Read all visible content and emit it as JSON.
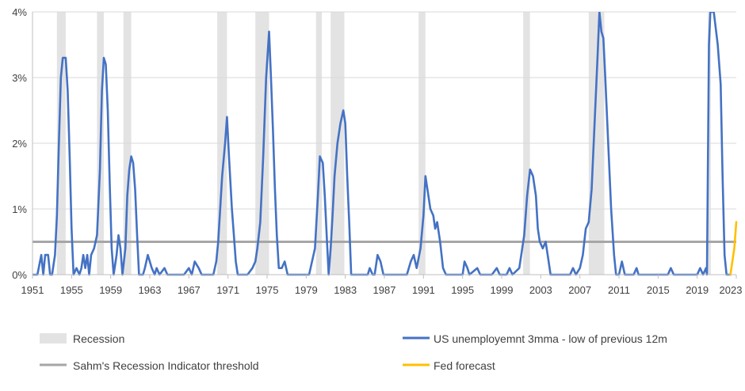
{
  "chart_data": {
    "type": "line",
    "title": "",
    "xlabel": "",
    "ylabel": "",
    "xlim": [
      1951,
      2023
    ],
    "ylim": [
      0,
      4
    ],
    "y_ticks": [
      0,
      1,
      2,
      3,
      4
    ],
    "y_tick_labels": [
      "0%",
      "1%",
      "2%",
      "3%",
      "4%"
    ],
    "x_ticks": [
      1951,
      1955,
      1959,
      1963,
      1967,
      1971,
      1975,
      1979,
      1983,
      1987,
      1991,
      1995,
      1999,
      2003,
      2007,
      2011,
      2015,
      2019,
      2023
    ],
    "x_tick_labels": [
      "1951",
      "1955",
      "1959",
      "1963",
      "1967",
      "1971",
      "1975",
      "1979",
      "1983",
      "1987",
      "1991",
      "1995",
      "1999",
      "2003",
      "2007",
      "2011",
      "2015",
      "2019",
      "2023"
    ],
    "grid": "horizontal",
    "legend_position": "bottom",
    "recessions": [
      [
        1953.5,
        1954.4
      ],
      [
        1957.6,
        1958.3
      ],
      [
        1960.3,
        1961.1
      ],
      [
        1969.9,
        1970.9
      ],
      [
        1973.8,
        1975.2
      ],
      [
        1980.0,
        1980.6
      ],
      [
        1981.5,
        1982.9
      ],
      [
        1990.5,
        1991.2
      ],
      [
        2001.2,
        2001.9
      ],
      [
        2007.9,
        2009.5
      ],
      [
        2020.1,
        2020.4
      ]
    ],
    "threshold": 0.5,
    "series": [
      {
        "name": "US unemployemnt 3mma - low of previous 12m",
        "color": "#4472c4",
        "points": [
          [
            1951.0,
            0.0
          ],
          [
            1951.5,
            0.0
          ],
          [
            1951.9,
            0.3
          ],
          [
            1952.1,
            0.0
          ],
          [
            1952.3,
            0.3
          ],
          [
            1952.6,
            0.3
          ],
          [
            1952.8,
            0.0
          ],
          [
            1953.0,
            0.0
          ],
          [
            1953.3,
            0.3
          ],
          [
            1953.5,
            0.9
          ],
          [
            1953.7,
            2.0
          ],
          [
            1953.9,
            3.0
          ],
          [
            1954.1,
            3.3
          ],
          [
            1954.4,
            3.3
          ],
          [
            1954.6,
            2.8
          ],
          [
            1954.8,
            1.8
          ],
          [
            1955.0,
            0.7
          ],
          [
            1955.2,
            0.0
          ],
          [
            1955.5,
            0.1
          ],
          [
            1955.8,
            0.0
          ],
          [
            1956.0,
            0.1
          ],
          [
            1956.2,
            0.3
          ],
          [
            1956.4,
            0.1
          ],
          [
            1956.6,
            0.3
          ],
          [
            1956.8,
            0.0
          ],
          [
            1957.0,
            0.3
          ],
          [
            1957.3,
            0.4
          ],
          [
            1957.6,
            0.6
          ],
          [
            1957.9,
            1.6
          ],
          [
            1958.1,
            2.8
          ],
          [
            1958.3,
            3.3
          ],
          [
            1958.5,
            3.2
          ],
          [
            1958.7,
            2.5
          ],
          [
            1958.9,
            1.4
          ],
          [
            1959.1,
            0.4
          ],
          [
            1959.3,
            0.0
          ],
          [
            1959.6,
            0.3
          ],
          [
            1959.8,
            0.6
          ],
          [
            1960.0,
            0.4
          ],
          [
            1960.2,
            0.0
          ],
          [
            1960.5,
            0.4
          ],
          [
            1960.7,
            1.2
          ],
          [
            1960.9,
            1.6
          ],
          [
            1961.1,
            1.8
          ],
          [
            1961.3,
            1.7
          ],
          [
            1961.5,
            1.3
          ],
          [
            1961.7,
            0.6
          ],
          [
            1961.9,
            0.0
          ],
          [
            1962.3,
            0.0
          ],
          [
            1962.5,
            0.1
          ],
          [
            1962.8,
            0.3
          ],
          [
            1963.0,
            0.2
          ],
          [
            1963.2,
            0.1
          ],
          [
            1963.5,
            0.0
          ],
          [
            1963.7,
            0.1
          ],
          [
            1964.0,
            0.0
          ],
          [
            1964.5,
            0.1
          ],
          [
            1964.8,
            0.0
          ],
          [
            1966.5,
            0.0
          ],
          [
            1967.0,
            0.1
          ],
          [
            1967.3,
            0.0
          ],
          [
            1967.6,
            0.2
          ],
          [
            1968.0,
            0.1
          ],
          [
            1968.3,
            0.0
          ],
          [
            1969.5,
            0.0
          ],
          [
            1969.8,
            0.2
          ],
          [
            1970.0,
            0.5
          ],
          [
            1970.2,
            1.0
          ],
          [
            1970.4,
            1.5
          ],
          [
            1970.7,
            2.0
          ],
          [
            1970.9,
            2.4
          ],
          [
            1971.1,
            1.8
          ],
          [
            1971.4,
            1.0
          ],
          [
            1971.6,
            0.6
          ],
          [
            1971.8,
            0.2
          ],
          [
            1972.0,
            0.0
          ],
          [
            1973.0,
            0.0
          ],
          [
            1973.5,
            0.1
          ],
          [
            1973.8,
            0.2
          ],
          [
            1974.0,
            0.4
          ],
          [
            1974.3,
            0.8
          ],
          [
            1974.6,
            1.8
          ],
          [
            1974.9,
            3.0
          ],
          [
            1975.2,
            3.7
          ],
          [
            1975.4,
            3.0
          ],
          [
            1975.6,
            2.2
          ],
          [
            1975.8,
            1.3
          ],
          [
            1976.0,
            0.6
          ],
          [
            1976.2,
            0.1
          ],
          [
            1976.5,
            0.1
          ],
          [
            1976.8,
            0.2
          ],
          [
            1977.1,
            0.0
          ],
          [
            1979.3,
            0.0
          ],
          [
            1979.6,
            0.2
          ],
          [
            1979.9,
            0.4
          ],
          [
            1980.2,
            1.2
          ],
          [
            1980.4,
            1.8
          ],
          [
            1980.7,
            1.7
          ],
          [
            1980.9,
            1.2
          ],
          [
            1981.1,
            0.6
          ],
          [
            1981.3,
            0.0
          ],
          [
            1981.5,
            0.4
          ],
          [
            1981.7,
            0.9
          ],
          [
            1981.9,
            1.5
          ],
          [
            1982.2,
            2.0
          ],
          [
            1982.5,
            2.3
          ],
          [
            1982.8,
            2.5
          ],
          [
            1983.0,
            2.3
          ],
          [
            1983.2,
            1.5
          ],
          [
            1983.4,
            0.8
          ],
          [
            1983.6,
            0.0
          ],
          [
            1985.3,
            0.0
          ],
          [
            1985.5,
            0.1
          ],
          [
            1985.8,
            0.0
          ],
          [
            1986.0,
            0.0
          ],
          [
            1986.3,
            0.3
          ],
          [
            1986.6,
            0.2
          ],
          [
            1986.9,
            0.0
          ],
          [
            1989.3,
            0.0
          ],
          [
            1989.7,
            0.2
          ],
          [
            1990.0,
            0.3
          ],
          [
            1990.3,
            0.1
          ],
          [
            1990.7,
            0.4
          ],
          [
            1991.0,
            0.9
          ],
          [
            1991.2,
            1.5
          ],
          [
            1991.4,
            1.3
          ],
          [
            1991.7,
            1.0
          ],
          [
            1992.0,
            0.9
          ],
          [
            1992.2,
            0.7
          ],
          [
            1992.4,
            0.8
          ],
          [
            1992.7,
            0.5
          ],
          [
            1993.0,
            0.1
          ],
          [
            1993.3,
            0.0
          ],
          [
            1995.0,
            0.0
          ],
          [
            1995.2,
            0.2
          ],
          [
            1995.5,
            0.1
          ],
          [
            1995.7,
            0.0
          ],
          [
            1996.5,
            0.1
          ],
          [
            1996.8,
            0.0
          ],
          [
            1998.0,
            0.0
          ],
          [
            1998.5,
            0.1
          ],
          [
            1998.8,
            0.0
          ],
          [
            1999.5,
            0.0
          ],
          [
            1999.8,
            0.1
          ],
          [
            2000.1,
            0.0
          ],
          [
            2000.8,
            0.1
          ],
          [
            2001.0,
            0.3
          ],
          [
            2001.3,
            0.6
          ],
          [
            2001.6,
            1.2
          ],
          [
            2001.9,
            1.6
          ],
          [
            2002.2,
            1.5
          ],
          [
            2002.5,
            1.2
          ],
          [
            2002.7,
            0.7
          ],
          [
            2002.9,
            0.5
          ],
          [
            2003.2,
            0.4
          ],
          [
            2003.5,
            0.5
          ],
          [
            2003.7,
            0.3
          ],
          [
            2004.0,
            0.0
          ],
          [
            2006.0,
            0.0
          ],
          [
            2006.3,
            0.1
          ],
          [
            2006.6,
            0.0
          ],
          [
            2007.0,
            0.1
          ],
          [
            2007.3,
            0.3
          ],
          [
            2007.6,
            0.7
          ],
          [
            2007.9,
            0.8
          ],
          [
            2008.2,
            1.3
          ],
          [
            2008.5,
            2.3
          ],
          [
            2008.8,
            3.3
          ],
          [
            2009.0,
            4.0
          ],
          [
            2009.2,
            3.7
          ],
          [
            2009.4,
            3.6
          ],
          [
            2009.6,
            3.0
          ],
          [
            2009.9,
            2.0
          ],
          [
            2010.2,
            1.0
          ],
          [
            2010.5,
            0.3
          ],
          [
            2010.7,
            0.0
          ],
          [
            2011.0,
            0.0
          ],
          [
            2011.3,
            0.2
          ],
          [
            2011.6,
            0.0
          ],
          [
            2012.5,
            0.0
          ],
          [
            2012.8,
            0.1
          ],
          [
            2013.0,
            0.0
          ],
          [
            2016.0,
            0.0
          ],
          [
            2016.3,
            0.1
          ],
          [
            2016.6,
            0.0
          ],
          [
            2019.0,
            0.0
          ],
          [
            2019.3,
            0.1
          ],
          [
            2019.6,
            0.0
          ],
          [
            2019.9,
            0.1
          ],
          [
            2020.0,
            0.0
          ],
          [
            2020.2,
            3.5
          ],
          [
            2020.35,
            4.0
          ],
          [
            2020.7,
            4.0
          ],
          [
            2021.1,
            3.5
          ],
          [
            2021.4,
            2.9
          ],
          [
            2021.6,
            1.5
          ],
          [
            2021.8,
            0.3
          ],
          [
            2022.0,
            0.0
          ],
          [
            2022.4,
            0.0
          ]
        ]
      },
      {
        "name": "Fed forecast",
        "color": "#ffc000",
        "points": [
          [
            2022.4,
            0.0
          ],
          [
            2022.8,
            0.4
          ],
          [
            2023.0,
            0.8
          ]
        ]
      }
    ],
    "legend": {
      "recession": "Recession",
      "unemployment": "US unemployemnt 3mma - low of previous 12m",
      "threshold": "Sahm's Recession Indicator threshold",
      "forecast": "Fed forecast"
    },
    "colors": {
      "recession": "#e3e3e3",
      "unemployment": "#4472c4",
      "threshold": "#a6a6a6",
      "forecast": "#ffc000",
      "gridline": "#d9d9d9",
      "axis": "#bfbfbf",
      "text": "#404040"
    }
  }
}
